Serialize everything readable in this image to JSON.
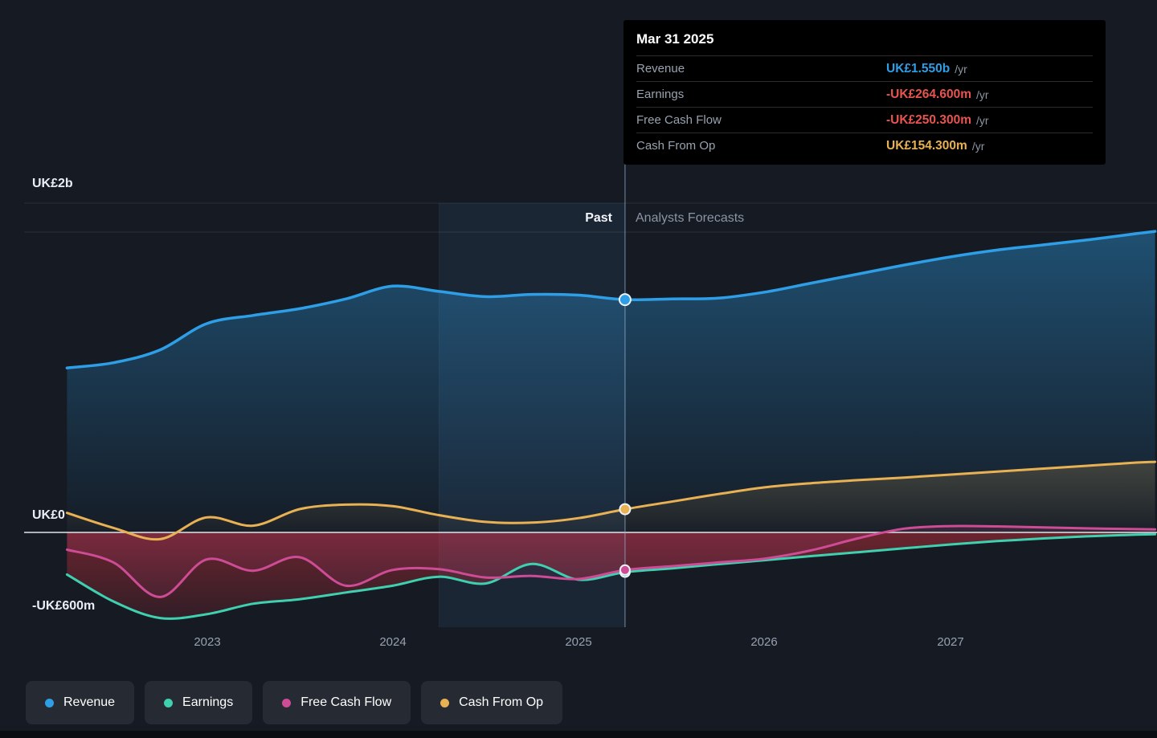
{
  "page": {
    "background": "#151a23"
  },
  "tooltip": {
    "date": "Mar 31 2025",
    "rows": [
      {
        "label": "Revenue",
        "value": "UK£1.550b",
        "suffix": "/yr",
        "color": "#2E9FE6"
      },
      {
        "label": "Earnings",
        "value": "-UK£264.600m",
        "suffix": "/yr",
        "color": "#E8544F"
      },
      {
        "label": "Free Cash Flow",
        "value": "-UK£250.300m",
        "suffix": "/yr",
        "color": "#E8544F"
      },
      {
        "label": "Cash From Op",
        "value": "UK£154.300m",
        "suffix": "/yr",
        "color": "#E8B153"
      }
    ]
  },
  "axes": {
    "y_labels": [
      {
        "text": "UK£2b",
        "value": 2000
      },
      {
        "text": "UK£0",
        "value": 0
      },
      {
        "text": "-UK£600m",
        "value": -600
      }
    ],
    "x_labels": [
      "2023",
      "2024",
      "2025",
      "2026",
      "2027"
    ]
  },
  "sections": {
    "past": "Past",
    "forecast": "Analysts Forecasts"
  },
  "legend": [
    {
      "label": "Revenue",
      "color": "#2E9FE6"
    },
    {
      "label": "Earnings",
      "color": "#3FD0B0"
    },
    {
      "label": "Free Cash Flow",
      "color": "#CE4B96"
    },
    {
      "label": "Cash From Op",
      "color": "#E8B153"
    }
  ],
  "chart_data": {
    "type": "line",
    "title": "Past performance and analysts forecasts",
    "unit": "UK£ millions per year",
    "currency": "UK£",
    "divider_x": 2025.25,
    "divider_date": "Mar 31 2025",
    "highlight_band": [
      2024.25,
      2025.25
    ],
    "ylim": [
      -650,
      2150
    ],
    "x": [
      2022.25,
      2022.5,
      2022.75,
      2023,
      2023.25,
      2023.5,
      2023.75,
      2024,
      2024.25,
      2024.5,
      2024.75,
      2025,
      2025.25,
      2025.5,
      2025.75,
      2026,
      2026.25,
      2026.5,
      2026.75,
      2027,
      2027.25,
      2027.5,
      2027.75,
      2028,
      2028.1
    ],
    "series": [
      {
        "name": "Revenue",
        "color": "#2E9FE6",
        "values": [
          1095,
          1130,
          1215,
          1390,
          1445,
          1490,
          1555,
          1640,
          1605,
          1570,
          1585,
          1580,
          1550,
          1555,
          1560,
          1600,
          1660,
          1720,
          1780,
          1835,
          1880,
          1915,
          1950,
          1990,
          2005
        ]
      },
      {
        "name": "Earnings",
        "color": "#3FD0B0",
        "values": [
          -280,
          -460,
          -570,
          -545,
          -475,
          -445,
          -400,
          -355,
          -295,
          -340,
          -210,
          -315,
          -264.6,
          -240,
          -212,
          -185,
          -158,
          -132,
          -106,
          -80,
          -58,
          -40,
          -25,
          -15,
          -12
        ]
      },
      {
        "name": "Free Cash Flow",
        "color": "#CE4B96",
        "values": [
          -115,
          -200,
          -430,
          -180,
          -255,
          -165,
          -355,
          -250,
          -245,
          -300,
          -290,
          -310,
          -250.3,
          -225,
          -200,
          -175,
          -120,
          -40,
          25,
          42,
          40,
          33,
          27,
          22,
          20
        ]
      },
      {
        "name": "Cash From Op",
        "color": "#E8B153",
        "values": [
          130,
          30,
          -45,
          100,
          45,
          155,
          185,
          175,
          115,
          70,
          65,
          95,
          154.3,
          205,
          255,
          300,
          328,
          348,
          365,
          385,
          405,
          425,
          445,
          465,
          470
        ]
      }
    ],
    "marked_values_at_divider": {
      "Revenue": 1550,
      "Earnings": -264.6,
      "Free Cash Flow": -250.3,
      "Cash From Op": 154.3
    }
  }
}
